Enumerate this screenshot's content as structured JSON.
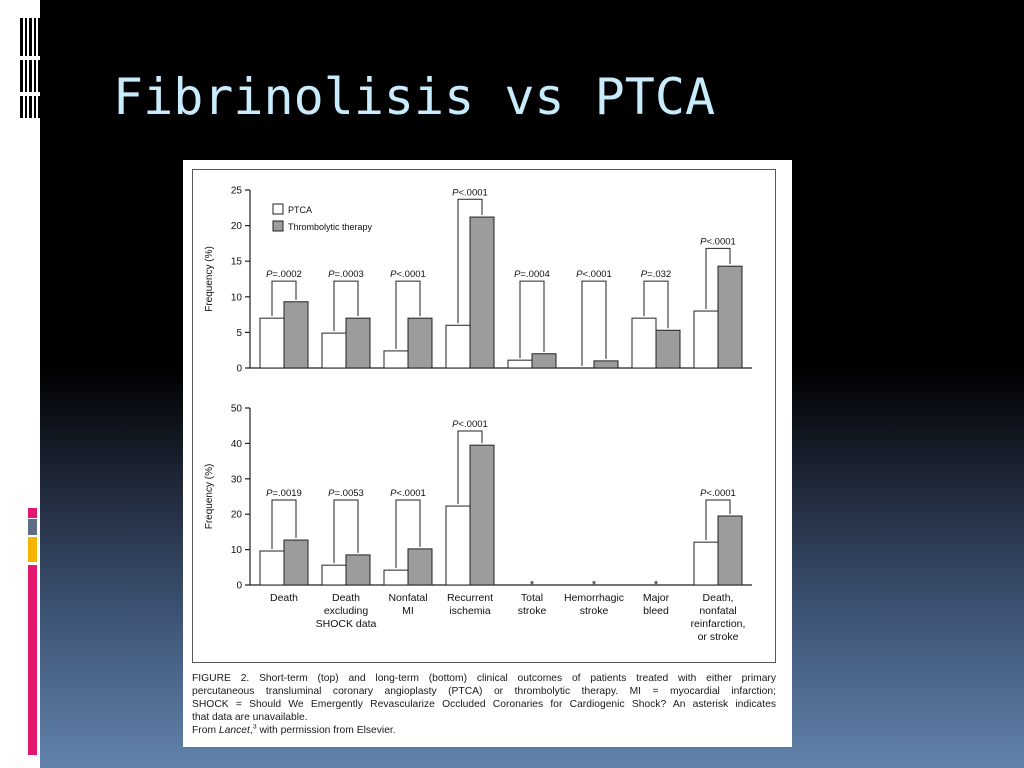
{
  "slide": {
    "title": "Fibrinolisis vs PTCA"
  },
  "colors": {
    "title": "#c8ecfb",
    "ptca_fill": "#ffffff",
    "thrombolytic_fill": "#9c9c9c",
    "accent_bars": [
      "#e4176e",
      "#5e6c86",
      "#f4b400",
      "#e4176e"
    ]
  },
  "chart_data": {
    "type": "bar",
    "categories": [
      "Death",
      "Death\nexcluding\nSHOCK data",
      "Nonfatal\nMI",
      "Recurrent\nischemia",
      "Total\nstroke",
      "Hemorrhagic\nstroke",
      "Major\nbleed",
      "Death,\nnonfatal\nreinfarction,\nor stroke"
    ],
    "legend": {
      "placement": "top-left",
      "entries": [
        "PTCA",
        "Thrombolytic therapy"
      ]
    },
    "ylabel": "Frequency (%)",
    "unavailable_marker": "*",
    "panels": [
      {
        "ylim": [
          0,
          25
        ],
        "yticks": [
          0,
          5,
          10,
          15,
          20,
          25
        ],
        "series": [
          {
            "name": "PTCA",
            "values": [
              7,
              4.9,
              2.4,
              6,
              1.1,
              0,
              7,
              8
            ]
          },
          {
            "name": "Thrombolytic therapy",
            "values": [
              9.3,
              7,
              7,
              21.2,
              2,
              1,
              5.3,
              14.3
            ]
          }
        ],
        "p_values": [
          "P=.0002",
          "P=.0003",
          "P<.0001",
          "P<.0001",
          "P=.0004",
          "P<.0001",
          "P=.032",
          "P<.0001"
        ]
      },
      {
        "ylim": [
          0,
          50
        ],
        "yticks": [
          0,
          10,
          20,
          30,
          40,
          50
        ],
        "series": [
          {
            "name": "PTCA",
            "values": [
              9.6,
              5.6,
              4.2,
              22.3,
              null,
              null,
              null,
              12.1
            ]
          },
          {
            "name": "Thrombolytic therapy",
            "values": [
              12.7,
              8.5,
              10.2,
              39.5,
              null,
              null,
              null,
              19.5
            ]
          }
        ],
        "p_values": [
          "P=.0019",
          "P=.0053",
          "P<.0001",
          "P<.0001",
          null,
          null,
          null,
          "P<.0001"
        ]
      }
    ]
  },
  "caption": {
    "lines": [
      "FIGURE 2. Short-term (top) and long-term (bottom) clinical outcomes of patients treated with either primary",
      "percutaneous transluminal coronary angioplasty (PTCA) or thrombolytic therapy. MI = myocardial infarction;",
      "SHOCK = Should We Emergently Revascularize Occluded Coronaries for Cardiogenic Shock? An asterisk indicates",
      "that data are unavailable."
    ],
    "source": {
      "prefix": "From ",
      "journal": "Lancet",
      "punct": ",",
      "ref": "3",
      "suffix": " with permission from Elsevier."
    }
  }
}
